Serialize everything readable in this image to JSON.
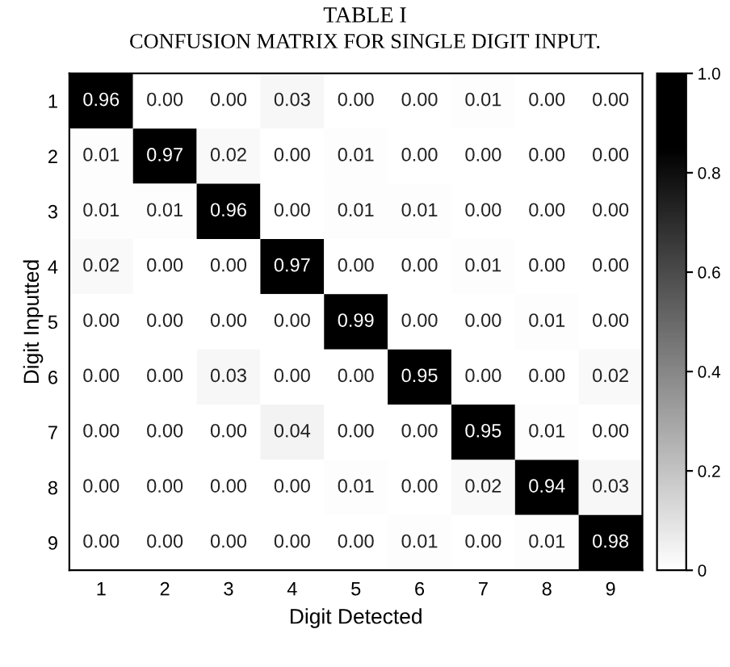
{
  "chart_data": {
    "type": "heatmap",
    "title": "TABLE I",
    "subtitle": "CONFUSION MATRIX FOR SINGLE DIGIT INPUT.",
    "xlabel": "Digit Detected",
    "ylabel": "Digit Inputted",
    "categories": [
      "1",
      "2",
      "3",
      "4",
      "5",
      "6",
      "7",
      "8",
      "9"
    ],
    "y_categories": [
      "1",
      "2",
      "3",
      "4",
      "5",
      "6",
      "7",
      "8",
      "9"
    ],
    "cells": [
      [
        0.96,
        0.0,
        0.0,
        0.03,
        0.0,
        0.0,
        0.01,
        0.0,
        0.0
      ],
      [
        0.01,
        0.97,
        0.02,
        0.0,
        0.01,
        0.0,
        0.0,
        0.0,
        0.0
      ],
      [
        0.01,
        0.01,
        0.96,
        0.0,
        0.01,
        0.01,
        0.0,
        0.0,
        0.0
      ],
      [
        0.02,
        0.0,
        0.0,
        0.97,
        0.0,
        0.0,
        0.01,
        0.0,
        0.0
      ],
      [
        0.0,
        0.0,
        0.0,
        0.0,
        0.99,
        0.0,
        0.0,
        0.01,
        0.0
      ],
      [
        0.0,
        0.0,
        0.03,
        0.0,
        0.0,
        0.95,
        0.0,
        0.0,
        0.02
      ],
      [
        0.0,
        0.0,
        0.0,
        0.04,
        0.0,
        0.0,
        0.95,
        0.01,
        0.0
      ],
      [
        0.0,
        0.0,
        0.0,
        0.0,
        0.01,
        0.0,
        0.02,
        0.94,
        0.03
      ],
      [
        0.0,
        0.0,
        0.0,
        0.0,
        0.0,
        0.01,
        0.0,
        0.01,
        0.98
      ]
    ],
    "cell_labels": [
      [
        "0.96",
        "0.00",
        "0.00",
        "0.03",
        "0.00",
        "0.00",
        "0.01",
        "0.00",
        "0.00"
      ],
      [
        "0.01",
        "0.97",
        "0.02",
        "0.00",
        "0.01",
        "0.00",
        "0.00",
        "0.00",
        "0.00"
      ],
      [
        "0.01",
        "0.01",
        "0.96",
        "0.00",
        "0.01",
        "0.01",
        "0.00",
        "0.00",
        "0.00"
      ],
      [
        "0.02",
        "0.00",
        "0.00",
        "0.97",
        "0.00",
        "0.00",
        "0.01",
        "0.00",
        "0.00"
      ],
      [
        "0.00",
        "0.00",
        "0.00",
        "0.00",
        "0.99",
        "0.00",
        "0.00",
        "0.01",
        "0.00"
      ],
      [
        "0.00",
        "0.00",
        "0.03",
        "0.00",
        "0.00",
        "0.95",
        "0.00",
        "0.00",
        "0.02"
      ],
      [
        "0.00",
        "0.00",
        "0.00",
        "0.04",
        "0.00",
        "0.00",
        "0.95",
        "0.01",
        "0.00"
      ],
      [
        "0.00",
        "0.00",
        "0.00",
        "0.00",
        "0.01",
        "0.00",
        "0.02",
        "0.94",
        "0.03"
      ],
      [
        "0.00",
        "0.00",
        "0.00",
        "0.00",
        "0.00",
        "0.01",
        "0.00",
        "0.01",
        "0.98"
      ]
    ],
    "clim": [
      0,
      1
    ],
    "cticks": [
      0,
      0.2,
      0.4,
      0.6,
      0.8,
      {
        "value": 1,
        "label": "1.0"
      }
    ]
  }
}
